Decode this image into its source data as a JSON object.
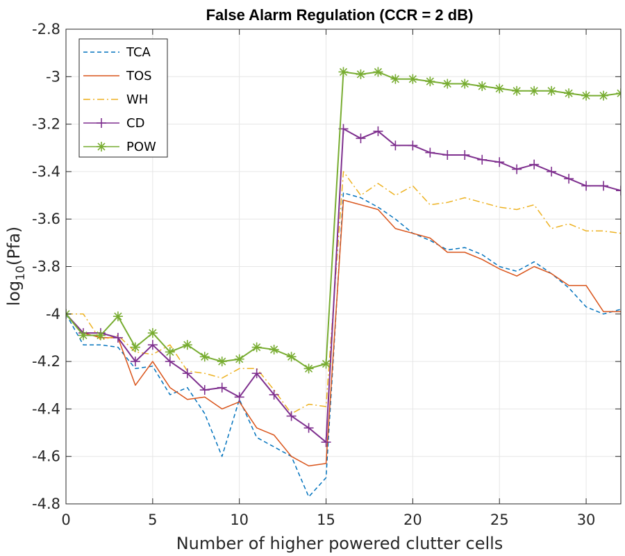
{
  "chart_data": {
    "type": "line",
    "title": "False Alarm Regulation (CCR = 2 dB)",
    "xlabel": "Number of higher powered clutter cells",
    "ylabel_main": "log",
    "ylabel_sub": "10",
    "ylabel_tail": "(Pfa)",
    "xlim": [
      0,
      32
    ],
    "ylim": [
      -4.8,
      -2.8
    ],
    "xticks": [
      0,
      5,
      10,
      15,
      20,
      25,
      30
    ],
    "yticks": [
      -2.8,
      -3,
      -3.2,
      -3.4,
      -3.6,
      -3.8,
      -4,
      -4.2,
      -4.4,
      -4.6,
      -4.8
    ],
    "xtick_labels": [
      "0",
      "5",
      "10",
      "15",
      "20",
      "25",
      "30"
    ],
    "ytick_labels": [
      "-2.8",
      "-3",
      "-3.2",
      "-3.4",
      "-3.6",
      "-3.8",
      "-4",
      "-4.2",
      "-4.4",
      "-4.6",
      "-4.8"
    ],
    "grid": true,
    "legend_position": "top-left",
    "x": [
      0,
      1,
      2,
      3,
      4,
      5,
      6,
      7,
      8,
      9,
      10,
      11,
      12,
      13,
      14,
      15,
      16,
      17,
      18,
      19,
      20,
      21,
      22,
      23,
      24,
      25,
      26,
      27,
      28,
      29,
      30,
      31,
      32
    ],
    "series": [
      {
        "name": "TCA",
        "color": "#0072BD",
        "style": "dashed",
        "marker": "none",
        "values": [
          -4.0,
          -4.13,
          -4.13,
          -4.14,
          -4.23,
          -4.22,
          -4.34,
          -4.31,
          -4.42,
          -4.6,
          -4.36,
          -4.52,
          -4.56,
          -4.6,
          -4.77,
          -4.69,
          -3.49,
          -3.51,
          -3.55,
          -3.6,
          -3.66,
          -3.69,
          -3.73,
          -3.72,
          -3.75,
          -3.8,
          -3.82,
          -3.78,
          -3.83,
          -3.89,
          -3.97,
          -4.0,
          -3.98
        ]
      },
      {
        "name": "TOS",
        "color": "#D95319",
        "style": "solid",
        "marker": "none",
        "values": [
          -4.0,
          -4.08,
          -4.1,
          -4.1,
          -4.3,
          -4.2,
          -4.31,
          -4.36,
          -4.35,
          -4.4,
          -4.37,
          -4.48,
          -4.51,
          -4.6,
          -4.64,
          -4.63,
          -3.52,
          -3.54,
          -3.56,
          -3.64,
          -3.66,
          -3.68,
          -3.74,
          -3.74,
          -3.77,
          -3.81,
          -3.84,
          -3.8,
          -3.83,
          -3.88,
          -3.88,
          -3.99,
          -3.99
        ]
      },
      {
        "name": "WH",
        "color": "#EDB120",
        "style": "dashdot",
        "marker": "none",
        "values": [
          -4.0,
          -4.0,
          -4.11,
          -4.09,
          -4.16,
          -4.17,
          -4.13,
          -4.24,
          -4.25,
          -4.27,
          -4.23,
          -4.23,
          -4.32,
          -4.42,
          -4.38,
          -4.39,
          -3.4,
          -3.5,
          -3.45,
          -3.5,
          -3.46,
          -3.54,
          -3.53,
          -3.51,
          -3.53,
          -3.55,
          -3.56,
          -3.54,
          -3.64,
          -3.62,
          -3.65,
          -3.65,
          -3.66
        ]
      },
      {
        "name": "CD",
        "color": "#7E2F8E",
        "style": "solid",
        "marker": "plus",
        "values": [
          -4.0,
          -4.08,
          -4.08,
          -4.1,
          -4.2,
          -4.13,
          -4.2,
          -4.25,
          -4.32,
          -4.31,
          -4.35,
          -4.25,
          -4.34,
          -4.43,
          -4.48,
          -4.54,
          -3.22,
          -3.26,
          -3.23,
          -3.29,
          -3.29,
          -3.32,
          -3.33,
          -3.33,
          -3.35,
          -3.36,
          -3.39,
          -3.37,
          -3.4,
          -3.43,
          -3.46,
          -3.46,
          -3.48
        ]
      },
      {
        "name": "POW",
        "color": "#77AC30",
        "style": "solid",
        "marker": "asterisk",
        "values": [
          -4.0,
          -4.09,
          -4.09,
          -4.01,
          -4.14,
          -4.08,
          -4.16,
          -4.13,
          -4.18,
          -4.2,
          -4.19,
          -4.14,
          -4.15,
          -4.18,
          -4.23,
          -4.21,
          -2.98,
          -2.99,
          -2.98,
          -3.01,
          -3.01,
          -3.02,
          -3.03,
          -3.03,
          -3.04,
          -3.05,
          -3.06,
          -3.06,
          -3.06,
          -3.07,
          -3.08,
          -3.08,
          -3.07
        ]
      }
    ]
  }
}
